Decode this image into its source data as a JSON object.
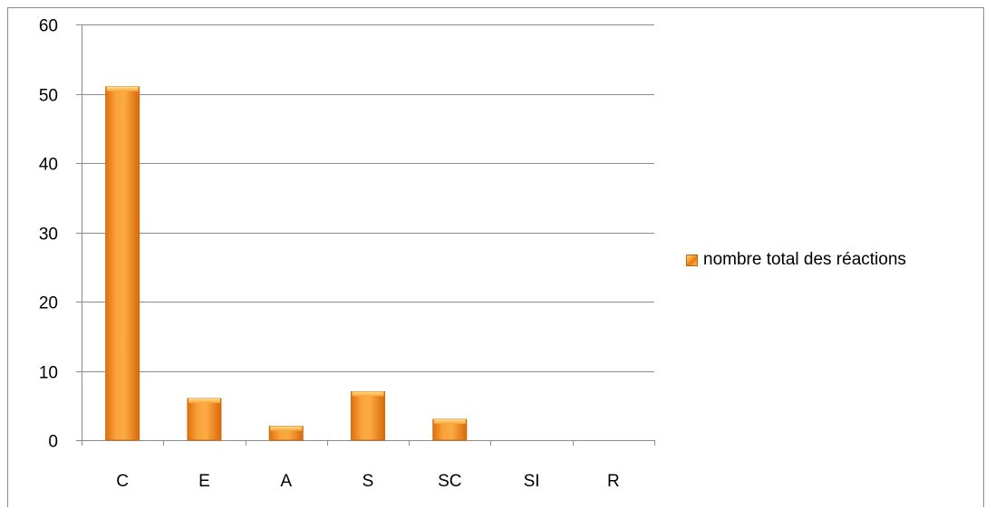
{
  "chart_data": {
    "type": "bar",
    "categories": [
      "C",
      "E",
      "A",
      "S",
      "SC",
      "SI",
      "R"
    ],
    "series": [
      {
        "name": "nombre total des réactions",
        "values": [
          51,
          6,
          2,
          7,
          3,
          0,
          0
        ],
        "color": "#f7941d"
      }
    ],
    "yticks": [
      "0",
      "10",
      "20",
      "30",
      "40",
      "50",
      "60"
    ],
    "ylim": [
      0,
      60
    ],
    "grid": true,
    "legend_position": "right"
  }
}
